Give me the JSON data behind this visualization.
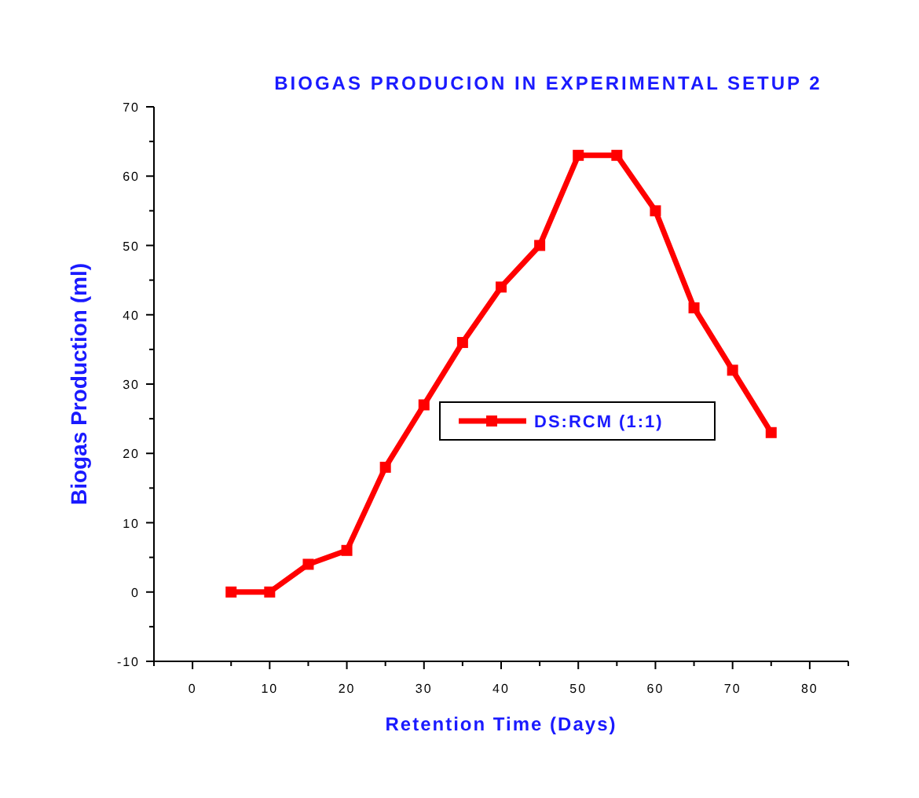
{
  "chart_data": {
    "type": "line",
    "title": "BIOGAS PRODUCION IN EXPERIMENTAL SETUP 2",
    "xlabel": "Retention Time (Days)",
    "ylabel": "Biogas Production (ml)",
    "x": [
      5,
      10,
      15,
      20,
      25,
      30,
      35,
      40,
      45,
      50,
      55,
      60,
      65,
      70,
      75
    ],
    "series": [
      {
        "name": "DS:RCM (1:1)",
        "color": "#ff0000",
        "values": [
          0,
          0,
          4,
          6,
          18,
          27,
          36,
          44,
          50,
          63,
          63,
          55,
          41,
          32,
          23
        ]
      }
    ],
    "xlim": [
      -5,
      85
    ],
    "xticks": [
      0,
      10,
      20,
      30,
      40,
      50,
      60,
      70,
      80
    ],
    "ylim": [
      -10,
      70
    ],
    "yticks": [
      -10,
      0,
      10,
      20,
      30,
      40,
      50,
      60,
      70
    ],
    "marker": "square",
    "line_style": "solid",
    "legend": "center",
    "grid": false
  }
}
